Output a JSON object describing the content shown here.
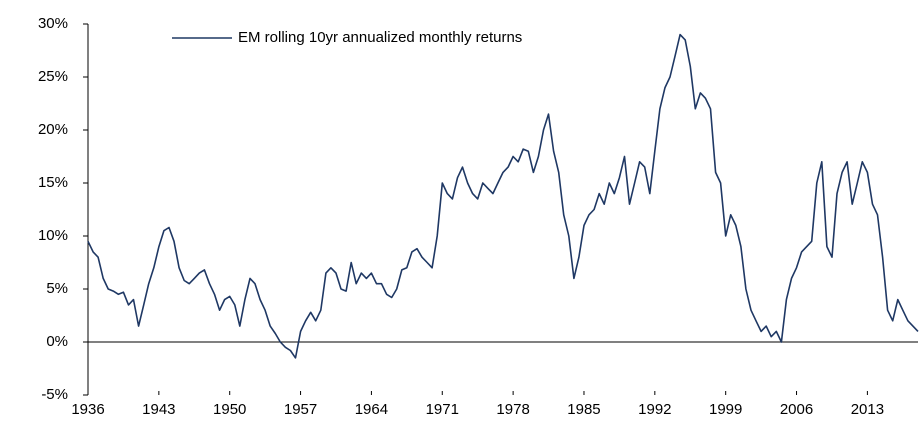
{
  "chart_data": {
    "type": "line",
    "x": [
      1936,
      1936.5,
      1937,
      1937.5,
      1938,
      1938.5,
      1939,
      1939.5,
      1940,
      1940.5,
      1941,
      1941.5,
      1942,
      1942.5,
      1943,
      1943.5,
      1944,
      1944.5,
      1945,
      1945.5,
      1946,
      1946.5,
      1947,
      1947.5,
      1948,
      1948.5,
      1949,
      1949.5,
      1950,
      1950.5,
      1951,
      1951.5,
      1952,
      1952.5,
      1953,
      1953.5,
      1954,
      1954.5,
      1955,
      1955.5,
      1956,
      1956.5,
      1957,
      1957.5,
      1958,
      1958.5,
      1959,
      1959.5,
      1960,
      1960.5,
      1961,
      1961.5,
      1962,
      1962.5,
      1963,
      1963.5,
      1964,
      1964.5,
      1965,
      1965.5,
      1966,
      1966.5,
      1967,
      1967.5,
      1968,
      1968.5,
      1969,
      1969.5,
      1970,
      1970.5,
      1971,
      1971.5,
      1972,
      1972.5,
      1973,
      1973.5,
      1974,
      1974.5,
      1975,
      1975.5,
      1976,
      1976.5,
      1977,
      1977.5,
      1978,
      1978.5,
      1979,
      1979.5,
      1980,
      1980.5,
      1981,
      1981.5,
      1982,
      1982.5,
      1983,
      1983.5,
      1984,
      1984.5,
      1985,
      1985.5,
      1986,
      1986.5,
      1987,
      1987.5,
      1988,
      1988.5,
      1989,
      1989.5,
      1990,
      1990.5,
      1991,
      1991.5,
      1992,
      1992.5,
      1993,
      1993.5,
      1994,
      1994.5,
      1995,
      1995.5,
      1996,
      1996.5,
      1997,
      1997.5,
      1998,
      1998.5,
      1999,
      1999.5,
      2000,
      2000.5,
      2001,
      2001.5,
      2002,
      2002.5,
      2003,
      2003.5,
      2004,
      2004.5,
      2005,
      2005.5,
      2006,
      2006.5,
      2007,
      2007.5,
      2008,
      2008.5,
      2009,
      2009.5,
      2010,
      2010.5,
      2011,
      2011.5,
      2012,
      2012.5,
      2013,
      2013.5,
      2014,
      2014.5,
      2015,
      2015.5,
      2016,
      2016.5,
      2017,
      2017.5,
      2018
    ],
    "series": [
      {
        "name": "EM rolling 10yr annualized monthly returns",
        "color": "#1f3864",
        "values": [
          9.5,
          8.5,
          8,
          6,
          5,
          4.8,
          4.5,
          4.7,
          3.5,
          4,
          1.5,
          3.5,
          5.5,
          7,
          9,
          10.5,
          10.8,
          9.5,
          7,
          5.8,
          5.5,
          6,
          6.5,
          6.8,
          5.5,
          4.5,
          3,
          4,
          4.3,
          3.5,
          1.5,
          4,
          6,
          5.5,
          4,
          3,
          1.5,
          0.8,
          0,
          -0.5,
          -0.8,
          -1.5,
          1,
          2,
          2.8,
          2,
          3,
          6.5,
          7,
          6.5,
          5,
          4.8,
          7.5,
          5.5,
          6.5,
          6,
          6.5,
          5.5,
          5.5,
          4.5,
          4.2,
          5,
          6.8,
          7,
          8.5,
          8.8,
          8,
          7.5,
          7,
          10,
          15,
          14,
          13.5,
          15.5,
          16.5,
          15,
          14,
          13.5,
          15,
          14.5,
          14,
          15,
          16,
          16.5,
          17.5,
          17,
          18.2,
          18,
          16,
          17.5,
          20,
          21.5,
          18,
          16,
          12,
          10,
          6,
          8,
          11,
          12,
          12.5,
          14,
          13,
          15,
          14,
          15.5,
          17.5,
          13,
          15,
          17,
          16.5,
          14,
          18,
          22,
          24,
          25,
          27,
          29,
          28.5,
          26,
          22,
          23.5,
          23,
          22,
          16,
          15,
          10,
          12,
          11,
          9,
          5,
          3,
          2,
          1,
          1.5,
          0.5,
          1,
          0,
          4,
          6,
          7,
          8.5,
          9,
          9.5,
          15,
          17,
          9,
          8,
          14,
          16,
          17,
          13,
          15,
          17,
          16,
          13,
          12,
          8,
          3,
          2,
          4,
          3,
          2,
          1.5,
          1
        ]
      }
    ],
    "xlim": [
      1936,
      2018
    ],
    "xticks": [
      1936,
      1943,
      1950,
      1957,
      1964,
      1971,
      1978,
      1985,
      1992,
      1999,
      2006,
      2013
    ],
    "ylim": [
      -5,
      30
    ],
    "yticks": [
      {
        "value": -5,
        "label": "-5%"
      },
      {
        "value": 0,
        "label": "0%"
      },
      {
        "value": 5,
        "label": "5%"
      },
      {
        "value": 10,
        "label": "10%"
      },
      {
        "value": 15,
        "label": "15%"
      },
      {
        "value": 20,
        "label": "20%"
      },
      {
        "value": 25,
        "label": "25%"
      },
      {
        "value": 30,
        "label": "30%"
      }
    ],
    "grid": false
  }
}
